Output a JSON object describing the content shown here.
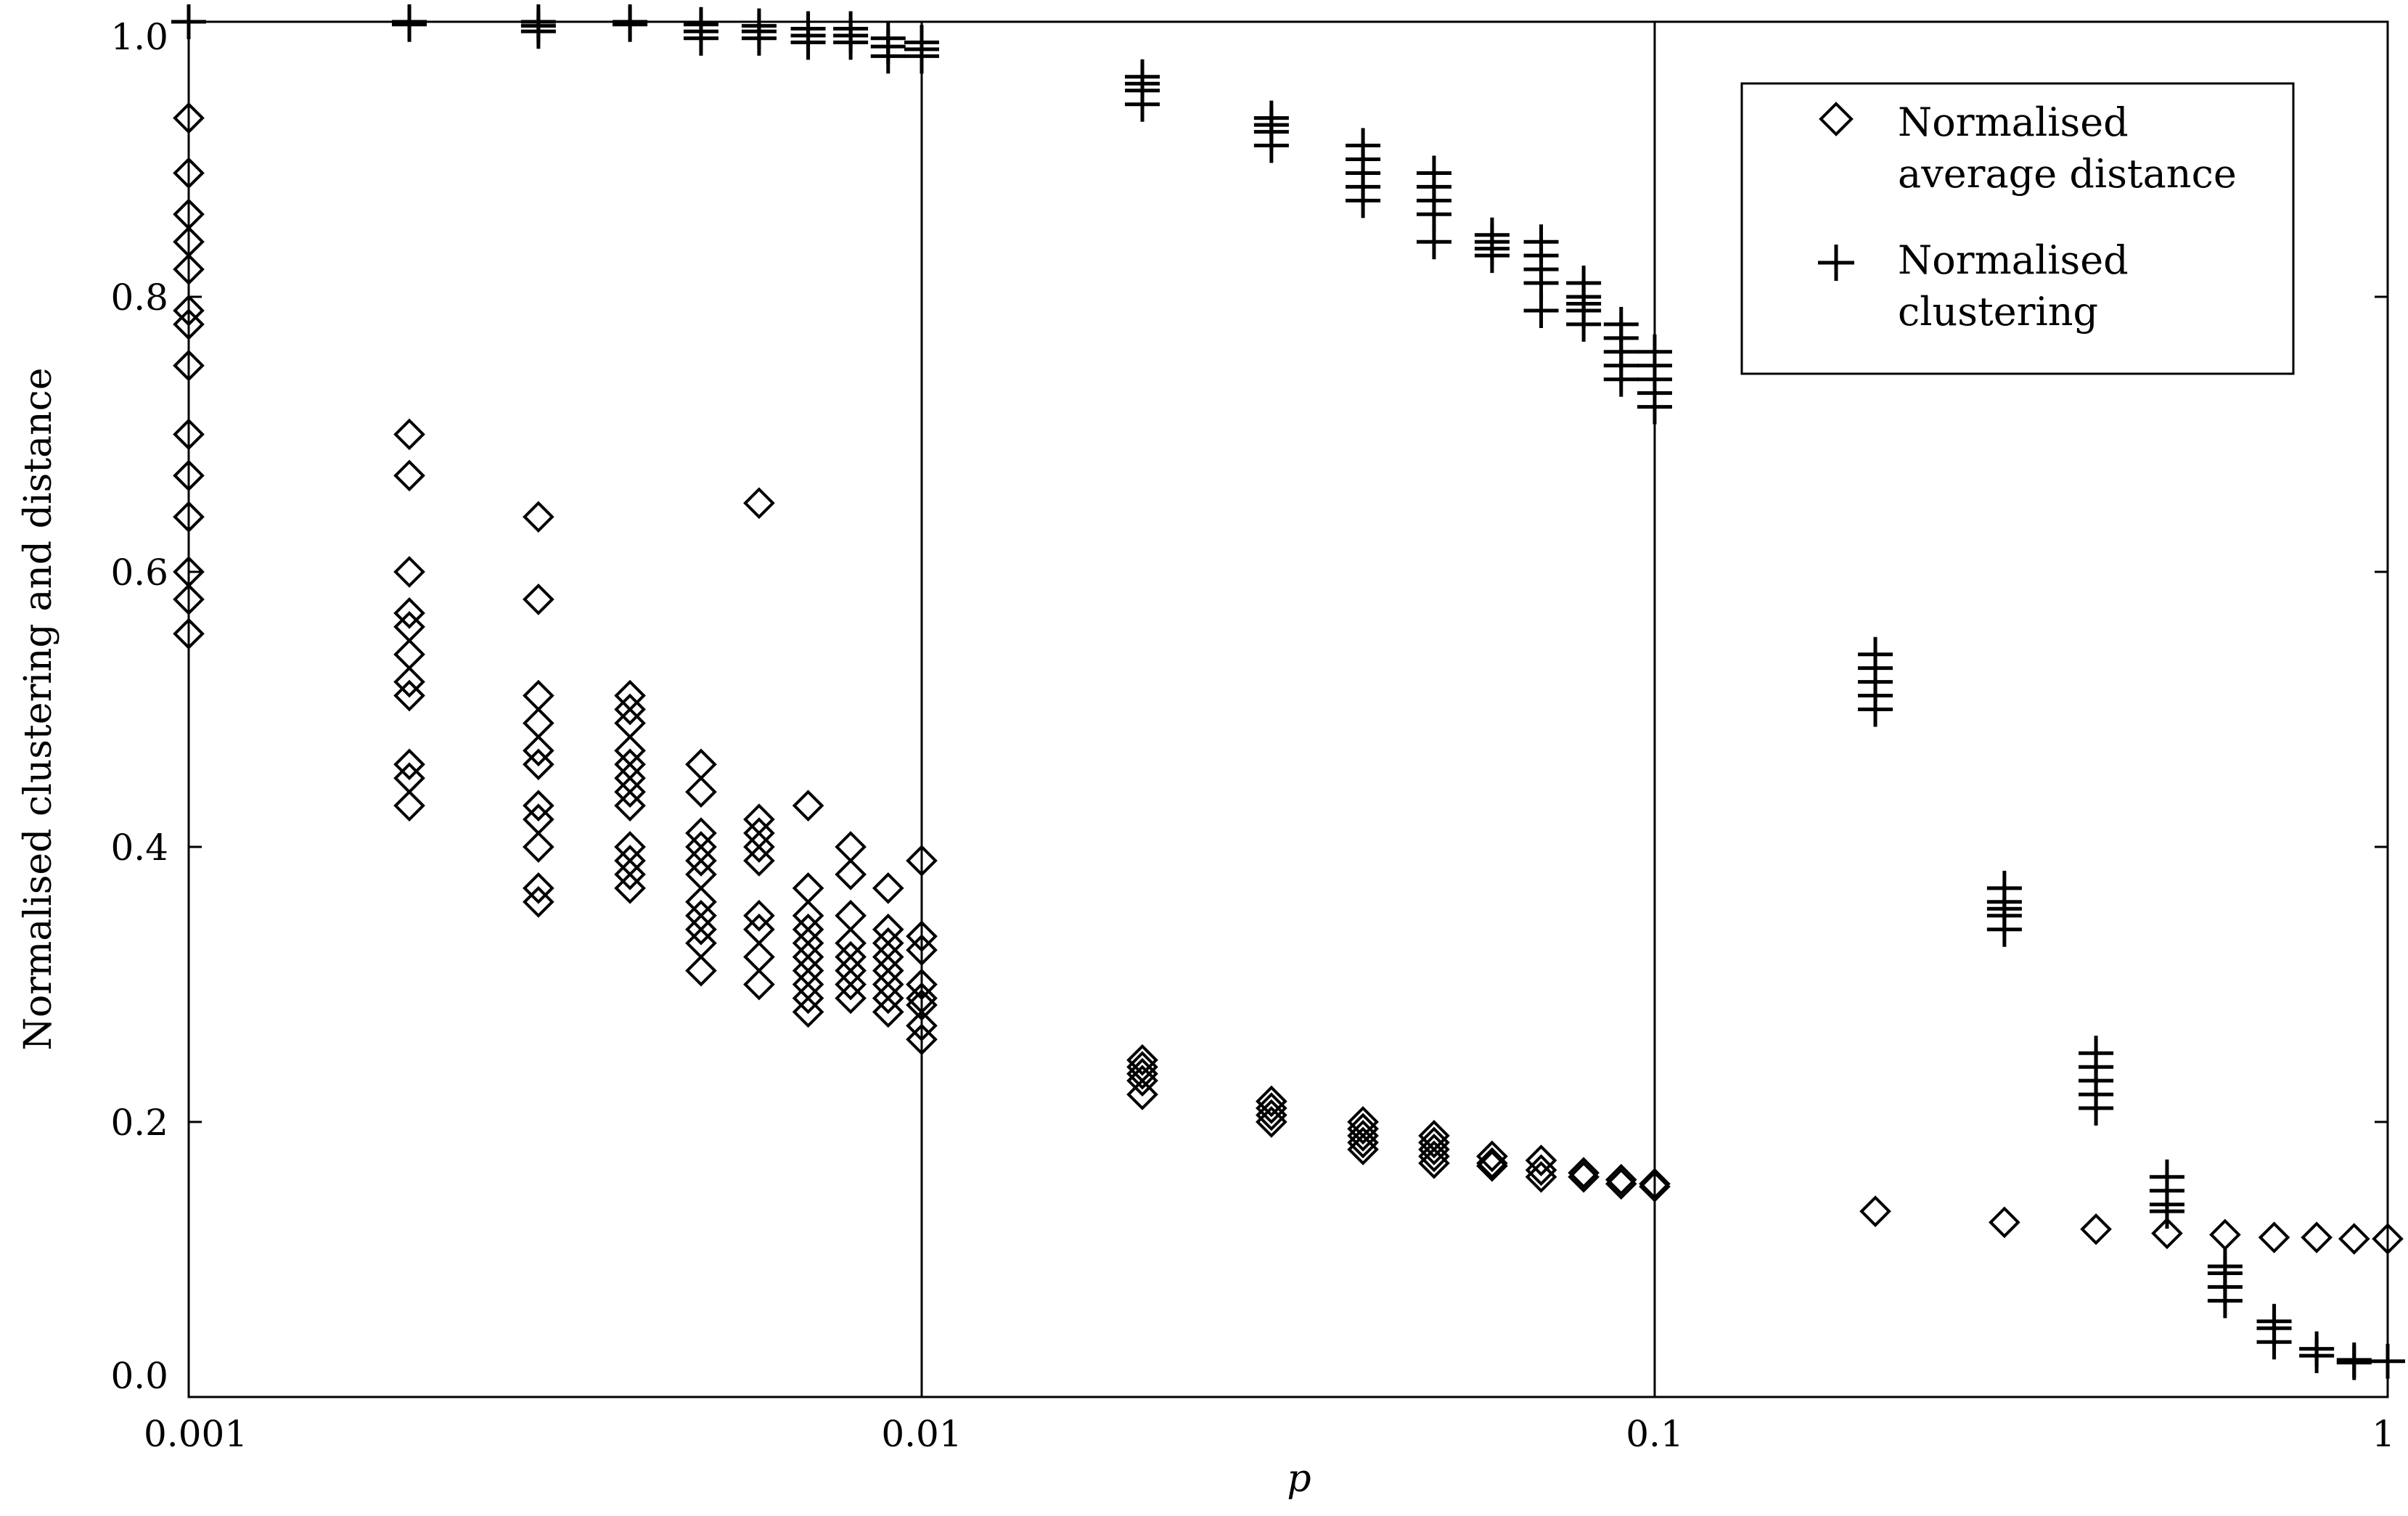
{
  "chart_data": {
    "type": "scatter",
    "xscale": "log",
    "xlim": [
      0.001,
      1
    ],
    "ylim": [
      0.0,
      1.0
    ],
    "xlabel": "p",
    "ylabel": "Normalised clustering and distance",
    "xticks": [
      0.001,
      0.01,
      0.1,
      1
    ],
    "xtick_labels": [
      "0.001",
      "0.01",
      "0.1",
      "1"
    ],
    "yticks": [
      0.0,
      0.2,
      0.4,
      0.6,
      0.8,
      1.0
    ],
    "ytick_labels": [
      "0.0",
      "0.2",
      "0.4",
      "0.6",
      "0.8",
      "1.0"
    ],
    "vlines": [
      0.01,
      0.1
    ],
    "grid": false,
    "legend_position": "top-right",
    "legend": [
      {
        "marker": "diamond",
        "lines": [
          "Normalised",
          "average distance"
        ]
      },
      {
        "marker": "plus",
        "lines": [
          "Normalised",
          "clustering"
        ]
      }
    ],
    "series": [
      {
        "name": "Normalised average distance",
        "marker": "diamond",
        "points": [
          [
            0.001,
            0.93
          ],
          [
            0.001,
            0.89
          ],
          [
            0.001,
            0.86
          ],
          [
            0.001,
            0.84
          ],
          [
            0.001,
            0.82
          ],
          [
            0.001,
            0.79
          ],
          [
            0.001,
            0.78
          ],
          [
            0.001,
            0.75
          ],
          [
            0.001,
            0.7
          ],
          [
            0.001,
            0.67
          ],
          [
            0.001,
            0.64
          ],
          [
            0.001,
            0.6
          ],
          [
            0.001,
            0.58
          ],
          [
            0.001,
            0.555
          ],
          [
            0.002,
            0.7
          ],
          [
            0.002,
            0.67
          ],
          [
            0.002,
            0.6
          ],
          [
            0.002,
            0.57
          ],
          [
            0.002,
            0.56
          ],
          [
            0.002,
            0.54
          ],
          [
            0.002,
            0.52
          ],
          [
            0.002,
            0.51
          ],
          [
            0.002,
            0.46
          ],
          [
            0.002,
            0.45
          ],
          [
            0.002,
            0.43
          ],
          [
            0.003,
            0.64
          ],
          [
            0.003,
            0.58
          ],
          [
            0.003,
            0.51
          ],
          [
            0.003,
            0.49
          ],
          [
            0.003,
            0.47
          ],
          [
            0.003,
            0.46
          ],
          [
            0.003,
            0.43
          ],
          [
            0.003,
            0.42
          ],
          [
            0.003,
            0.4
          ],
          [
            0.003,
            0.37
          ],
          [
            0.003,
            0.36
          ],
          [
            0.004,
            0.51
          ],
          [
            0.004,
            0.5
          ],
          [
            0.004,
            0.49
          ],
          [
            0.004,
            0.47
          ],
          [
            0.004,
            0.46
          ],
          [
            0.004,
            0.45
          ],
          [
            0.004,
            0.44
          ],
          [
            0.004,
            0.43
          ],
          [
            0.004,
            0.4
          ],
          [
            0.004,
            0.39
          ],
          [
            0.004,
            0.38
          ],
          [
            0.004,
            0.37
          ],
          [
            0.005,
            0.46
          ],
          [
            0.005,
            0.44
          ],
          [
            0.005,
            0.41
          ],
          [
            0.005,
            0.4
          ],
          [
            0.005,
            0.39
          ],
          [
            0.005,
            0.38
          ],
          [
            0.005,
            0.36
          ],
          [
            0.005,
            0.35
          ],
          [
            0.005,
            0.34
          ],
          [
            0.005,
            0.33
          ],
          [
            0.005,
            0.31
          ],
          [
            0.006,
            0.65
          ],
          [
            0.006,
            0.42
          ],
          [
            0.006,
            0.41
          ],
          [
            0.006,
            0.4
          ],
          [
            0.006,
            0.39
          ],
          [
            0.006,
            0.35
          ],
          [
            0.006,
            0.34
          ],
          [
            0.006,
            0.32
          ],
          [
            0.006,
            0.3
          ],
          [
            0.007,
            0.43
          ],
          [
            0.007,
            0.37
          ],
          [
            0.007,
            0.35
          ],
          [
            0.007,
            0.34
          ],
          [
            0.007,
            0.33
          ],
          [
            0.007,
            0.32
          ],
          [
            0.007,
            0.31
          ],
          [
            0.007,
            0.3
          ],
          [
            0.007,
            0.29
          ],
          [
            0.007,
            0.28
          ],
          [
            0.008,
            0.4
          ],
          [
            0.008,
            0.38
          ],
          [
            0.008,
            0.35
          ],
          [
            0.008,
            0.33
          ],
          [
            0.008,
            0.32
          ],
          [
            0.008,
            0.31
          ],
          [
            0.008,
            0.3
          ],
          [
            0.008,
            0.29
          ],
          [
            0.009,
            0.37
          ],
          [
            0.009,
            0.34
          ],
          [
            0.009,
            0.33
          ],
          [
            0.009,
            0.32
          ],
          [
            0.009,
            0.31
          ],
          [
            0.009,
            0.3
          ],
          [
            0.009,
            0.29
          ],
          [
            0.009,
            0.28
          ],
          [
            0.01,
            0.39
          ],
          [
            0.01,
            0.335
          ],
          [
            0.01,
            0.325
          ],
          [
            0.01,
            0.3
          ],
          [
            0.01,
            0.29
          ],
          [
            0.01,
            0.285
          ],
          [
            0.01,
            0.27
          ],
          [
            0.01,
            0.26
          ],
          [
            0.02,
            0.245
          ],
          [
            0.02,
            0.24
          ],
          [
            0.02,
            0.235
          ],
          [
            0.02,
            0.23
          ],
          [
            0.02,
            0.22
          ],
          [
            0.03,
            0.215
          ],
          [
            0.03,
            0.21
          ],
          [
            0.03,
            0.205
          ],
          [
            0.03,
            0.2
          ],
          [
            0.04,
            0.2
          ],
          [
            0.04,
            0.195
          ],
          [
            0.04,
            0.19
          ],
          [
            0.04,
            0.185
          ],
          [
            0.04,
            0.18
          ],
          [
            0.05,
            0.19
          ],
          [
            0.05,
            0.185
          ],
          [
            0.05,
            0.18
          ],
          [
            0.05,
            0.175
          ],
          [
            0.05,
            0.17
          ],
          [
            0.06,
            0.175
          ],
          [
            0.06,
            0.17
          ],
          [
            0.06,
            0.168
          ],
          [
            0.07,
            0.172
          ],
          [
            0.07,
            0.165
          ],
          [
            0.07,
            0.16
          ],
          [
            0.08,
            0.163
          ],
          [
            0.08,
            0.16
          ],
          [
            0.09,
            0.158
          ],
          [
            0.09,
            0.155
          ],
          [
            0.1,
            0.155
          ],
          [
            0.1,
            0.153
          ],
          [
            0.2,
            0.135
          ],
          [
            0.3,
            0.127
          ],
          [
            0.4,
            0.122
          ],
          [
            0.5,
            0.119
          ],
          [
            0.6,
            0.118
          ],
          [
            0.7,
            0.116
          ],
          [
            0.8,
            0.116
          ],
          [
            0.9,
            0.115
          ],
          [
            1.0,
            0.115
          ]
        ]
      },
      {
        "name": "Normalised clustering",
        "marker": "plus",
        "points": [
          [
            0.001,
            1.0
          ],
          [
            0.002,
            0.998
          ],
          [
            0.002,
            1.0
          ],
          [
            0.003,
            0.993
          ],
          [
            0.003,
            0.997
          ],
          [
            0.003,
            1.0
          ],
          [
            0.004,
            0.998
          ],
          [
            0.004,
            1.0
          ],
          [
            0.005,
            0.988
          ],
          [
            0.005,
            0.993
          ],
          [
            0.005,
            0.998
          ],
          [
            0.006,
            0.988
          ],
          [
            0.006,
            0.993
          ],
          [
            0.006,
            0.997
          ],
          [
            0.007,
            0.985
          ],
          [
            0.007,
            0.99
          ],
          [
            0.007,
            0.995
          ],
          [
            0.008,
            0.985
          ],
          [
            0.008,
            0.99
          ],
          [
            0.008,
            0.995
          ],
          [
            0.009,
            0.975
          ],
          [
            0.009,
            0.982
          ],
          [
            0.009,
            0.988
          ],
          [
            0.01,
            0.975
          ],
          [
            0.01,
            0.98
          ],
          [
            0.01,
            0.985
          ],
          [
            0.02,
            0.94
          ],
          [
            0.02,
            0.95
          ],
          [
            0.02,
            0.955
          ],
          [
            0.02,
            0.96
          ],
          [
            0.03,
            0.91
          ],
          [
            0.03,
            0.92
          ],
          [
            0.03,
            0.925
          ],
          [
            0.03,
            0.93
          ],
          [
            0.04,
            0.87
          ],
          [
            0.04,
            0.88
          ],
          [
            0.04,
            0.89
          ],
          [
            0.04,
            0.9
          ],
          [
            0.04,
            0.91
          ],
          [
            0.05,
            0.84
          ],
          [
            0.05,
            0.86
          ],
          [
            0.05,
            0.87
          ],
          [
            0.05,
            0.88
          ],
          [
            0.05,
            0.89
          ],
          [
            0.06,
            0.83
          ],
          [
            0.06,
            0.835
          ],
          [
            0.06,
            0.84
          ],
          [
            0.06,
            0.845
          ],
          [
            0.07,
            0.79
          ],
          [
            0.07,
            0.81
          ],
          [
            0.07,
            0.82
          ],
          [
            0.07,
            0.83
          ],
          [
            0.07,
            0.84
          ],
          [
            0.08,
            0.78
          ],
          [
            0.08,
            0.79
          ],
          [
            0.08,
            0.795
          ],
          [
            0.08,
            0.8
          ],
          [
            0.08,
            0.81
          ],
          [
            0.09,
            0.74
          ],
          [
            0.09,
            0.75
          ],
          [
            0.09,
            0.76
          ],
          [
            0.09,
            0.77
          ],
          [
            0.09,
            0.78
          ],
          [
            0.1,
            0.72
          ],
          [
            0.1,
            0.73
          ],
          [
            0.1,
            0.74
          ],
          [
            0.1,
            0.75
          ],
          [
            0.1,
            0.76
          ],
          [
            0.2,
            0.5
          ],
          [
            0.2,
            0.51
          ],
          [
            0.2,
            0.52
          ],
          [
            0.2,
            0.53
          ],
          [
            0.2,
            0.54
          ],
          [
            0.3,
            0.34
          ],
          [
            0.3,
            0.35
          ],
          [
            0.3,
            0.355
          ],
          [
            0.3,
            0.36
          ],
          [
            0.3,
            0.37
          ],
          [
            0.4,
            0.21
          ],
          [
            0.4,
            0.22
          ],
          [
            0.4,
            0.23
          ],
          [
            0.4,
            0.24
          ],
          [
            0.4,
            0.25
          ],
          [
            0.5,
            0.135
          ],
          [
            0.5,
            0.14
          ],
          [
            0.5,
            0.15
          ],
          [
            0.5,
            0.16
          ],
          [
            0.6,
            0.07
          ],
          [
            0.6,
            0.08
          ],
          [
            0.6,
            0.09
          ],
          [
            0.6,
            0.095
          ],
          [
            0.7,
            0.04
          ],
          [
            0.7,
            0.05
          ],
          [
            0.7,
            0.055
          ],
          [
            0.8,
            0.03
          ],
          [
            0.8,
            0.035
          ],
          [
            0.9,
            0.025
          ],
          [
            0.9,
            0.027
          ],
          [
            1.0,
            0.026
          ]
        ]
      }
    ]
  }
}
